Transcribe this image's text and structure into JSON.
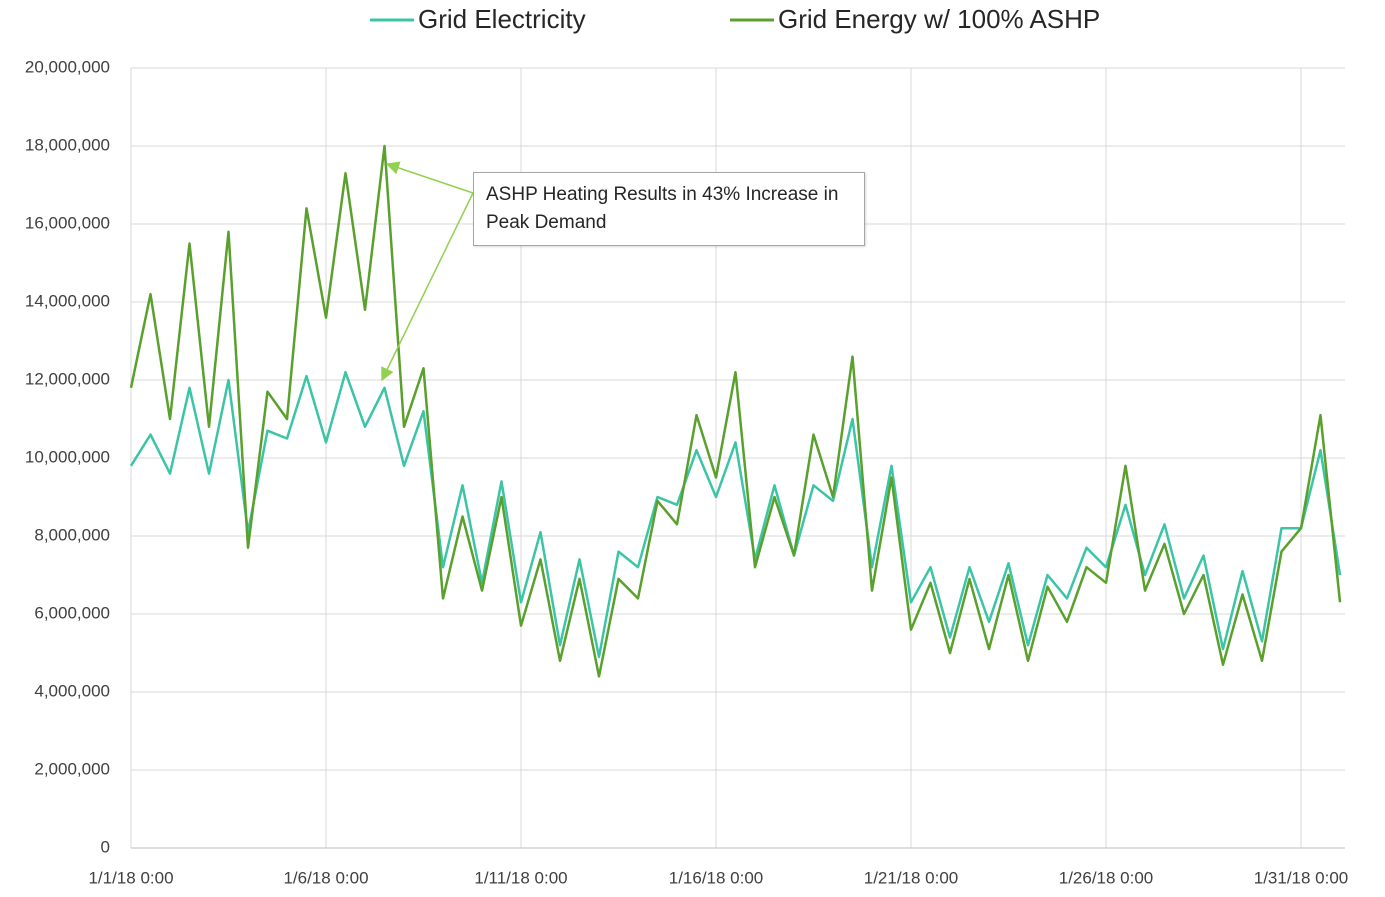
{
  "chart_data": {
    "type": "line",
    "legend": "top",
    "grid": true,
    "annotation": "ASHP Heating Results in 43% Increase in Peak Demand",
    "categories": [
      "1/1/18 0:00",
      null,
      null,
      null,
      null,
      null,
      null,
      null,
      null,
      null,
      "1/6/18 0:00",
      null,
      null,
      null,
      null,
      null,
      null,
      null,
      null,
      null,
      "1/11/18 0:00",
      null,
      null,
      null,
      null,
      null,
      null,
      null,
      null,
      null,
      "1/16/18 0:00",
      null,
      null,
      null,
      null,
      null,
      null,
      null,
      null,
      null,
      "1/21/18 0:00",
      null,
      null,
      null,
      null,
      null,
      null,
      null,
      null,
      null,
      "1/26/18 0:00",
      null,
      null,
      null,
      null,
      null,
      null,
      null,
      null,
      null,
      "1/31/18 0:00",
      null,
      null
    ],
    "ylim": [
      0,
      20000000
    ],
    "yticks": [
      0,
      {
        "value": 2000000,
        "label": "2,000,000"
      },
      {
        "value": 4000000,
        "label": "4,000,000"
      },
      {
        "value": 6000000,
        "label": "6,000,000"
      },
      {
        "value": 8000000,
        "label": "8,000,000"
      },
      {
        "value": 10000000,
        "label": "10,000,000"
      },
      {
        "value": 12000000,
        "label": "12,000,000"
      },
      {
        "value": 14000000,
        "label": "14,000,000"
      },
      {
        "value": 16000000,
        "label": "16,000,000"
      },
      {
        "value": 18000000,
        "label": "18,000,000"
      },
      {
        "value": 20000000,
        "label": "20,000,000"
      }
    ],
    "series": [
      {
        "name": "Grid Electricity",
        "color": "#3cc4a6",
        "values": [
          9800000,
          10600000,
          9600000,
          11800000,
          9600000,
          12000000,
          8100000,
          10700000,
          10500000,
          12100000,
          10400000,
          12200000,
          10800000,
          11800000,
          9800000,
          11200000,
          7200000,
          9300000,
          6800000,
          9400000,
          6300000,
          8100000,
          5200000,
          7400000,
          4900000,
          7600000,
          7200000,
          9000000,
          8800000,
          10200000,
          9000000,
          10400000,
          7400000,
          9300000,
          7500000,
          9300000,
          8900000,
          11000000,
          7200000,
          9800000,
          6300000,
          7200000,
          5400000,
          7200000,
          5800000,
          7300000,
          5200000,
          7000000,
          6400000,
          7700000,
          7200000,
          8800000,
          7000000,
          8300000,
          6400000,
          7500000,
          5100000,
          7100000,
          5300000,
          8200000,
          8200000,
          10200000,
          7000000
        ]
      },
      {
        "name": "Grid Energy w/ 100% ASHP",
        "color": "#5aa02c",
        "values": [
          11800000,
          14200000,
          11000000,
          15500000,
          10800000,
          15800000,
          7700000,
          11700000,
          11000000,
          16400000,
          13600000,
          17300000,
          13800000,
          18000000,
          10800000,
          12300000,
          6400000,
          8500000,
          6600000,
          9000000,
          5700000,
          7400000,
          4800000,
          6900000,
          4400000,
          6900000,
          6400000,
          8900000,
          8300000,
          11100000,
          9500000,
          12200000,
          7200000,
          9000000,
          7500000,
          10600000,
          9000000,
          12600000,
          6600000,
          9500000,
          5600000,
          6800000,
          5000000,
          6900000,
          5100000,
          7000000,
          4800000,
          6700000,
          5800000,
          7200000,
          6800000,
          9800000,
          6600000,
          7800000,
          6000000,
          7000000,
          4700000,
          6500000,
          4800000,
          7600000,
          8200000,
          11100000,
          6300000
        ]
      }
    ]
  }
}
